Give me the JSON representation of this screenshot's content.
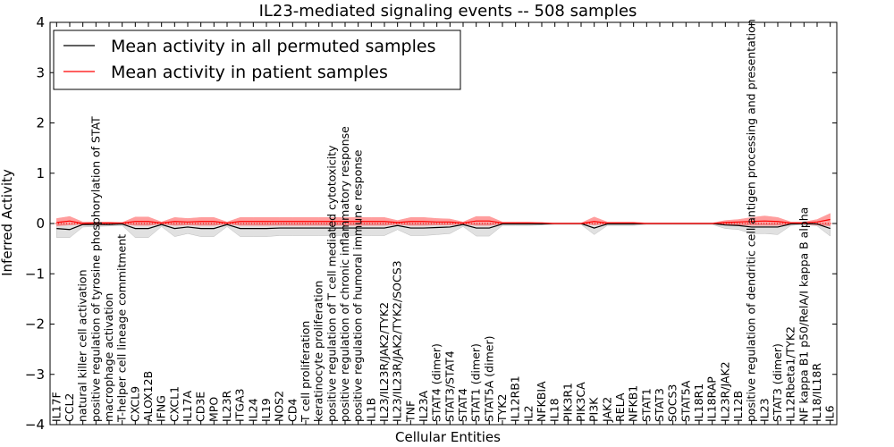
{
  "chart_data": {
    "type": "line",
    "title": "IL23-mediated signaling events -- 508 samples",
    "xlabel": "Cellular Entities",
    "ylabel": "Inferred Activity",
    "ylim": [
      -4,
      4
    ],
    "yticks": [
      4,
      3,
      2,
      1,
      0,
      -1,
      -2,
      -3,
      -4
    ],
    "ytick_labels": [
      "4",
      "3",
      "2",
      "1",
      "0",
      "−1",
      "−2",
      "−3",
      "−4"
    ],
    "grid": false,
    "legend_position": "top-left",
    "categories": [
      "IL17F",
      "CCL2",
      "natural killer cell activation",
      "positive regulation of tyrosine phosphorylation of STAT",
      "macrophage activation",
      "T-helper cell lineage commitment",
      "CXCL9",
      "ALOX12B",
      "IFNG",
      "CXCL1",
      "IL17A",
      "CD3E",
      "MPO",
      "IL23R",
      "ITGA3",
      "IL24",
      "IL19",
      "NOS2",
      "CD4",
      "T cell proliferation",
      "keratinocyte proliferation",
      "positive regulation of T cell mediated cytotoxicity",
      "positive regulation of chronic inflammatory response",
      "positive regulation of humoral immune response",
      "IL1B",
      "IL23/IL23R/JAK2/TYK2",
      "IL23/IL23R/JAK2/TYK2/SOCS3",
      "TNF",
      "IL23A",
      "STAT4 (dimer)",
      "STAT3/STAT4",
      "STAT4",
      "STAT1 (dimer)",
      "STAT5A (dimer)",
      "TYK2",
      "IL12RB1",
      "IL2",
      "NFKBIA",
      "IL18",
      "PIK3R1",
      "PIK3CA",
      "PI3K",
      "JAK2",
      "RELA",
      "NFKB1",
      "STAT1",
      "STAT3",
      "SOCS3",
      "STAT5A",
      "IL18R1",
      "IL18RAP",
      "IL23R/JAK2",
      "IL12B",
      "positive regulation of dendritic cell antigen processing and presentation",
      "IL23",
      "STAT3 (dimer)",
      "IL12Rbeta1/TYK2",
      "NF kappa B1 p50/RelA/I kappa B alpha",
      "IL18/IL18R",
      "IL6"
    ],
    "series": [
      {
        "name": "Mean activity in all permuted samples",
        "color": "#000000",
        "values": [
          -0.1,
          -0.12,
          -0.02,
          -0.02,
          -0.02,
          -0.01,
          -0.1,
          -0.1,
          -0.02,
          -0.1,
          -0.07,
          -0.1,
          -0.1,
          -0.02,
          -0.1,
          -0.1,
          -0.1,
          -0.09,
          -0.09,
          -0.09,
          -0.09,
          -0.09,
          -0.09,
          -0.09,
          -0.09,
          -0.09,
          -0.04,
          -0.09,
          -0.09,
          -0.08,
          -0.07,
          -0.02,
          -0.09,
          -0.09,
          -0.01,
          -0.01,
          -0.01,
          -0.01,
          0.0,
          0.0,
          0.0,
          -0.09,
          -0.01,
          -0.01,
          -0.01,
          0.0,
          0.0,
          0.0,
          0.0,
          0.0,
          0.0,
          -0.03,
          -0.04,
          -0.07,
          -0.07,
          -0.07,
          -0.01,
          0.0,
          -0.01,
          -0.1
        ],
        "band_low": [
          -0.28,
          -0.28,
          -0.07,
          -0.06,
          -0.05,
          -0.04,
          -0.28,
          -0.28,
          -0.06,
          -0.26,
          -0.2,
          -0.26,
          -0.26,
          -0.06,
          -0.26,
          -0.26,
          -0.26,
          -0.24,
          -0.24,
          -0.24,
          -0.24,
          -0.24,
          -0.24,
          -0.24,
          -0.24,
          -0.24,
          -0.12,
          -0.24,
          -0.24,
          -0.22,
          -0.2,
          -0.06,
          -0.25,
          -0.25,
          -0.04,
          -0.04,
          -0.04,
          -0.03,
          -0.02,
          -0.02,
          -0.02,
          -0.22,
          -0.04,
          -0.04,
          -0.04,
          -0.02,
          -0.02,
          -0.02,
          -0.02,
          -0.02,
          -0.02,
          -0.1,
          -0.12,
          -0.2,
          -0.2,
          -0.22,
          -0.04,
          -0.02,
          -0.05,
          -0.25
        ],
        "band_high": [
          -0.01,
          -0.02,
          0.0,
          0.0,
          0.0,
          0.0,
          -0.01,
          -0.01,
          0.0,
          -0.01,
          -0.01,
          -0.01,
          -0.01,
          0.0,
          -0.01,
          -0.01,
          -0.01,
          -0.01,
          -0.01,
          -0.01,
          -0.01,
          -0.01,
          -0.01,
          -0.01,
          -0.01,
          -0.01,
          0.0,
          -0.01,
          -0.01,
          -0.01,
          -0.01,
          0.0,
          -0.01,
          -0.01,
          0.0,
          0.0,
          0.0,
          0.0,
          0.0,
          0.0,
          0.0,
          -0.01,
          0.0,
          0.0,
          0.0,
          0.0,
          0.0,
          0.0,
          0.0,
          0.0,
          0.0,
          0.0,
          0.0,
          -0.01,
          -0.01,
          -0.01,
          0.0,
          0.0,
          0.0,
          -0.01
        ]
      },
      {
        "name": "Mean activity in patient samples",
        "color": "#ff0000",
        "values": [
          0.02,
          0.05,
          0.0,
          0.01,
          0.01,
          0.01,
          0.04,
          0.04,
          0.01,
          0.04,
          0.03,
          0.04,
          0.04,
          0.01,
          0.04,
          0.04,
          0.04,
          0.04,
          0.04,
          0.04,
          0.04,
          0.04,
          0.04,
          0.04,
          0.04,
          0.04,
          0.02,
          0.04,
          0.04,
          0.03,
          0.03,
          0.01,
          0.05,
          0.05,
          0.01,
          0.01,
          0.01,
          0.01,
          0.0,
          0.0,
          0.0,
          0.04,
          0.01,
          0.01,
          0.01,
          0.0,
          0.0,
          0.0,
          0.0,
          0.0,
          0.0,
          0.02,
          0.03,
          0.04,
          0.05,
          0.04,
          0.01,
          0.01,
          0.03,
          0.08
        ],
        "band_low": [
          -0.05,
          -0.03,
          -0.02,
          -0.01,
          -0.01,
          -0.01,
          -0.04,
          -0.04,
          -0.01,
          -0.04,
          -0.03,
          -0.04,
          -0.04,
          -0.01,
          -0.04,
          -0.04,
          -0.04,
          -0.04,
          -0.04,
          -0.04,
          -0.04,
          -0.04,
          -0.04,
          -0.04,
          -0.04,
          -0.04,
          -0.02,
          -0.04,
          -0.04,
          -0.03,
          -0.03,
          -0.01,
          -0.04,
          -0.04,
          -0.01,
          -0.01,
          -0.01,
          -0.01,
          0.0,
          0.0,
          0.0,
          -0.03,
          -0.01,
          -0.01,
          -0.01,
          0.0,
          0.0,
          0.0,
          0.0,
          0.0,
          0.0,
          -0.02,
          -0.03,
          -0.04,
          -0.04,
          -0.04,
          -0.01,
          -0.01,
          -0.03,
          -0.05
        ],
        "band_high": [
          0.1,
          0.14,
          0.03,
          0.03,
          0.03,
          0.02,
          0.13,
          0.13,
          0.03,
          0.12,
          0.1,
          0.12,
          0.12,
          0.03,
          0.12,
          0.12,
          0.12,
          0.12,
          0.12,
          0.12,
          0.12,
          0.12,
          0.12,
          0.12,
          0.12,
          0.12,
          0.06,
          0.12,
          0.12,
          0.1,
          0.09,
          0.03,
          0.14,
          0.14,
          0.03,
          0.03,
          0.03,
          0.02,
          0.01,
          0.01,
          0.01,
          0.13,
          0.03,
          0.03,
          0.03,
          0.01,
          0.01,
          0.01,
          0.01,
          0.01,
          0.01,
          0.06,
          0.08,
          0.12,
          0.15,
          0.12,
          0.03,
          0.03,
          0.08,
          0.2
        ]
      }
    ]
  }
}
